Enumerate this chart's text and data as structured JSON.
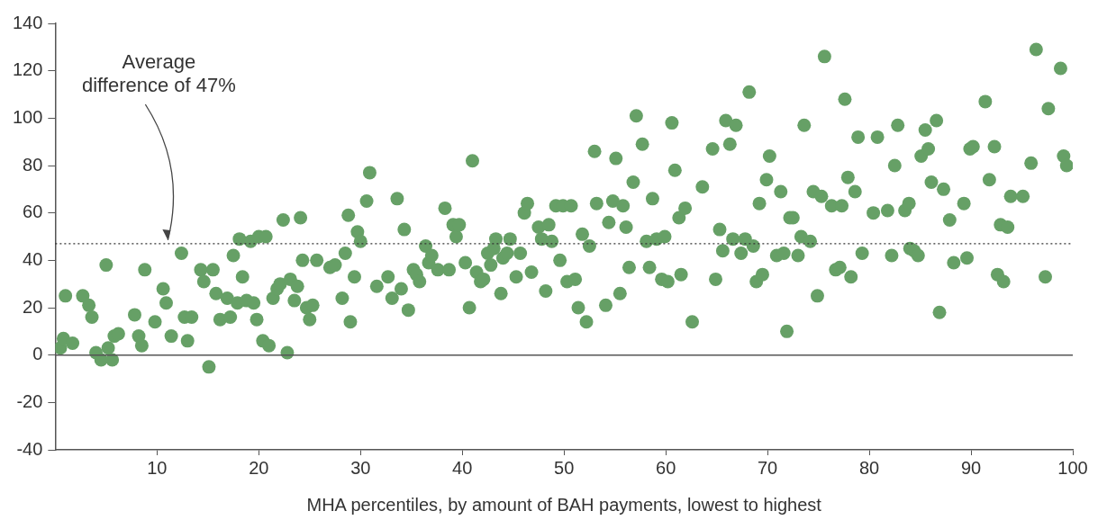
{
  "chart_data": {
    "type": "scatter",
    "xlabel": "MHA percentiles, by amount of BAH payments, lowest to highest",
    "xlim": [
      0,
      100
    ],
    "xticks": [
      10,
      20,
      30,
      40,
      50,
      60,
      70,
      80,
      90,
      100
    ],
    "ylim": [
      -40,
      140
    ],
    "yticks": [
      -40,
      -20,
      0,
      20,
      40,
      60,
      80,
      100,
      120,
      140
    ],
    "grid": false,
    "legend": false,
    "marker": "circle",
    "ref_lines": [
      {
        "axis": "y",
        "value": 0,
        "line_style": "solid",
        "color": "#555555"
      },
      {
        "axis": "y",
        "value": 47,
        "label": "Average difference of 47%",
        "line_style": "dotted",
        "color": "#333333"
      }
    ],
    "series": [
      {
        "color": "#66a066",
        "x": [
          0.5,
          0.8,
          1,
          1.7,
          2.7,
          3.3,
          3.6,
          4,
          4.5,
          5,
          5.2,
          5.6,
          5.8,
          6.2,
          7.8,
          8.2,
          8.5,
          8.8,
          9.8,
          10.6,
          10.9,
          11.4,
          12.4,
          12.7,
          13,
          13.4,
          14.3,
          14.6,
          15.1,
          15.5,
          15.8,
          16.2,
          16.9,
          17.2,
          17.5,
          17.9,
          18.1,
          18.4,
          18.8,
          19.2,
          19.5,
          19.8,
          20,
          20.4,
          20.7,
          21,
          21.4,
          21.8,
          22.1,
          22.4,
          22.8,
          23.1,
          23.5,
          23.8,
          24.1,
          24.3,
          24.7,
          25,
          25.3,
          25.7,
          27,
          27.5,
          28.2,
          28.5,
          28.8,
          29,
          29.4,
          29.7,
          30,
          30.6,
          30.9,
          31.6,
          32.7,
          33.1,
          33.6,
          34,
          34.3,
          34.7,
          35.2,
          35.5,
          35.8,
          36.4,
          36.7,
          37,
          37.6,
          38.3,
          38.7,
          39.1,
          39.4,
          39.7,
          40.3,
          40.7,
          41,
          41.4,
          41.8,
          42.1,
          42.5,
          42.8,
          43.1,
          43.3,
          43.8,
          44,
          44.4,
          44.7,
          45.3,
          45.7,
          46.1,
          46.4,
          46.8,
          47.5,
          47.8,
          48.2,
          48.5,
          48.8,
          49.2,
          49.6,
          49.9,
          50.3,
          50.7,
          51.1,
          51.4,
          51.8,
          52.2,
          52.5,
          53,
          53.2,
          54.1,
          54.4,
          54.8,
          55.1,
          55.5,
          55.8,
          56.1,
          56.4,
          56.8,
          57.1,
          57.7,
          58.1,
          58.4,
          58.7,
          59.1,
          59.6,
          59.9,
          60.2,
          60.6,
          60.9,
          61.3,
          61.5,
          61.9,
          62.6,
          63.6,
          64.6,
          64.9,
          65.3,
          65.6,
          65.9,
          66.3,
          66.6,
          66.9,
          67.4,
          67.8,
          68.2,
          68.6,
          68.9,
          69.2,
          69.5,
          69.9,
          70.2,
          70.9,
          71.3,
          71.6,
          71.9,
          72.2,
          72.5,
          73,
          73.3,
          73.6,
          74.2,
          74.5,
          74.9,
          75.3,
          75.6,
          76.3,
          76.7,
          77.1,
          77.3,
          77.6,
          77.9,
          78.2,
          78.6,
          78.9,
          79.3,
          80.4,
          80.8,
          81.8,
          82.2,
          82.5,
          82.8,
          83.5,
          83.9,
          84,
          84.4,
          84.8,
          85.1,
          85.5,
          85.8,
          86.1,
          86.6,
          86.9,
          87.3,
          87.9,
          88.3,
          89.3,
          89.6,
          89.9,
          90.2,
          91.4,
          91.8,
          92.3,
          92.6,
          92.9,
          93.2,
          93.6,
          93.9,
          95.1,
          95.9,
          96.4,
          97.3,
          97.6,
          98.8,
          99.1,
          99.4
        ],
        "values": [
          3,
          7,
          25,
          5,
          25,
          21,
          16,
          1,
          -2,
          38,
          3,
          -2,
          8,
          9,
          17,
          8,
          4,
          36,
          14,
          28,
          22,
          8,
          43,
          16,
          6,
          16,
          36,
          31,
          -5,
          36,
          26,
          15,
          24,
          16,
          42,
          22,
          49,
          33,
          23,
          48,
          22,
          15,
          50,
          6,
          50,
          4,
          24,
          28,
          30,
          57,
          1,
          32,
          23,
          29,
          58,
          40,
          20,
          15,
          21,
          40,
          37,
          38,
          24,
          43,
          59,
          14,
          33,
          52,
          48,
          65,
          77,
          29,
          33,
          24,
          66,
          28,
          53,
          19,
          36,
          34,
          31,
          46,
          39,
          42,
          36,
          62,
          36,
          55,
          50,
          55,
          39,
          20,
          82,
          35,
          31,
          32,
          43,
          38,
          45,
          49,
          26,
          41,
          43,
          49,
          33,
          43,
          60,
          64,
          35,
          54,
          49,
          27,
          55,
          48,
          63,
          40,
          63,
          31,
          63,
          32,
          20,
          51,
          14,
          46,
          86,
          64,
          21,
          56,
          65,
          83,
          26,
          63,
          54,
          37,
          73,
          101,
          89,
          48,
          37,
          66,
          49,
          32,
          50,
          31,
          98,
          78,
          58,
          34,
          62,
          14,
          71,
          87,
          32,
          53,
          44,
          99,
          89,
          49,
          97,
          43,
          49,
          111,
          46,
          31,
          64,
          34,
          74,
          84,
          42,
          69,
          43,
          10,
          58,
          58,
          42,
          50,
          97,
          48,
          69,
          25,
          67,
          126,
          63,
          36,
          37,
          63,
          108,
          75,
          33,
          69,
          92,
          43,
          60,
          92,
          61,
          42,
          80,
          97,
          61,
          64,
          45,
          44,
          42,
          84,
          95,
          87,
          73,
          99,
          18,
          70,
          57,
          39,
          64,
          41,
          87,
          88,
          107,
          74,
          88,
          34,
          55,
          31,
          54,
          67,
          67,
          81,
          129,
          33,
          104,
          121,
          84,
          80
        ]
      }
    ]
  }
}
